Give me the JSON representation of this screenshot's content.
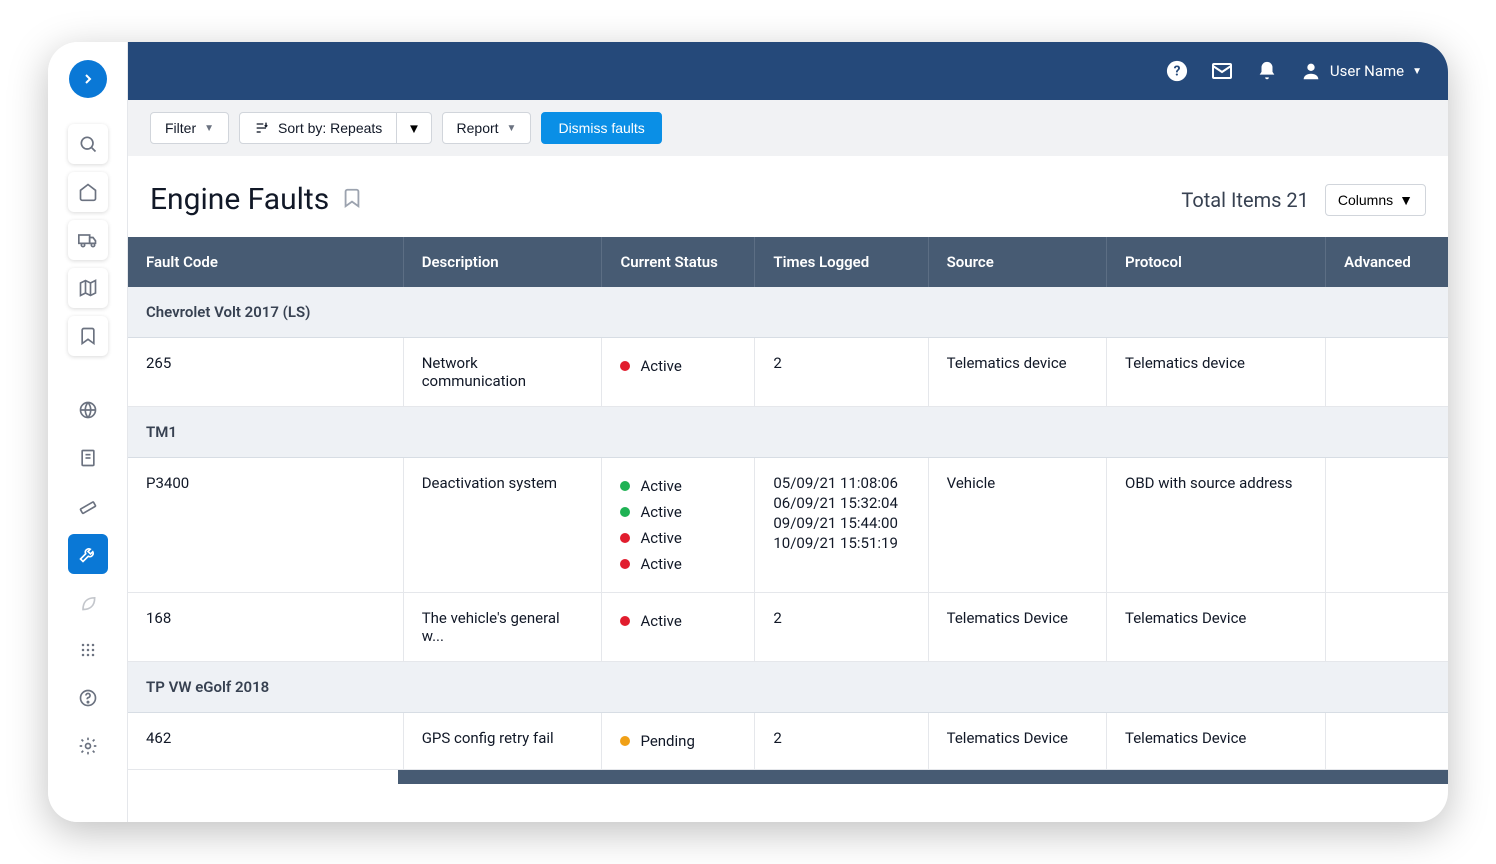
{
  "topbar": {
    "user_name": "User Name"
  },
  "toolbar": {
    "filter_label": "Filter",
    "sort_label": "Sort by: Repeats",
    "report_label": "Report",
    "dismiss_label": "Dismiss faults"
  },
  "header": {
    "title": "Engine Faults",
    "total_label": "Total Items 21",
    "columns_label": "Columns"
  },
  "table": {
    "columns": [
      "Fault Code",
      "Description",
      "Current Status",
      "Times Logged",
      "Source",
      "Protocol",
      "Advanced"
    ],
    "groups": [
      {
        "name": "Chevrolet Volt 2017 (LS)",
        "rows": [
          {
            "fault_code": "265",
            "description": "Network communication",
            "statuses": [
              {
                "color": "red",
                "label": "Active"
              }
            ],
            "times": [
              "2"
            ],
            "source": "Telematics device",
            "protocol": "Telematics device",
            "advanced": ""
          }
        ]
      },
      {
        "name": "TM1",
        "rows": [
          {
            "fault_code": "P3400",
            "description": "Deactivation system",
            "statuses": [
              {
                "color": "green",
                "label": "Active"
              },
              {
                "color": "green",
                "label": "Active"
              },
              {
                "color": "red",
                "label": "Active"
              },
              {
                "color": "red",
                "label": "Active"
              }
            ],
            "times": [
              "05/09/21 11:08:06",
              "06/09/21 15:32:04",
              "09/09/21 15:44:00",
              "10/09/21 15:51:19"
            ],
            "source": "Vehicle",
            "protocol": "OBD with source address",
            "advanced": ""
          },
          {
            "fault_code": "168",
            "description": "The vehicle's general w...",
            "statuses": [
              {
                "color": "red",
                "label": "Active"
              }
            ],
            "times": [
              "2"
            ],
            "source": "Telematics Device",
            "protocol": "Telematics Device",
            "advanced": ""
          }
        ]
      },
      {
        "name": "TP VW eGolf 2018",
        "rows": [
          {
            "fault_code": "462",
            "description": "GPS config retry fail",
            "statuses": [
              {
                "color": "orange",
                "label": "Pending"
              }
            ],
            "times": [
              "2"
            ],
            "source": "Telematics Device",
            "protocol": "Telematics Device",
            "advanced": ""
          }
        ]
      }
    ]
  },
  "colors": {
    "topbar_bg": "#25497a",
    "primary": "#0a78d6",
    "accent": "#0a8fe6",
    "table_header_bg": "#475b73",
    "group_bg": "#eef1f5",
    "red": "#e11d2e",
    "green": "#1fb254",
    "orange": "#f0a016"
  }
}
